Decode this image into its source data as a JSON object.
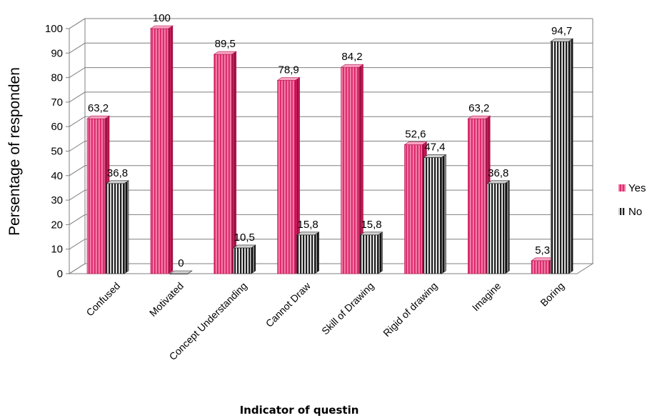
{
  "chart_data": {
    "type": "bar",
    "title": "",
    "xlabel": "Indicator of questin",
    "ylabel": "Persentage of responden",
    "ylim": [
      0,
      100
    ],
    "y_ticks": [
      0,
      10,
      20,
      30,
      40,
      50,
      60,
      70,
      80,
      90,
      100
    ],
    "grid": true,
    "legend_position": "right",
    "categories": [
      "Confused",
      "Motivated",
      "Concept Understanding",
      "Cannot Draw",
      "Skill of Drawing",
      "Rigid of drawing",
      "Imagine",
      "Boring"
    ],
    "series": [
      {
        "name": "Yes",
        "color": "#e8407a",
        "values": [
          63.2,
          100,
          89.5,
          78.9,
          84.2,
          52.6,
          63.2,
          5.3
        ],
        "labels": [
          "63,2",
          "100",
          "89,5",
          "78,9",
          "84,2",
          "52,6",
          "63,2",
          "5,3"
        ]
      },
      {
        "name": "No",
        "color": "#2a2a2a",
        "values": [
          36.8,
          0,
          10.5,
          15.8,
          15.8,
          47.4,
          36.8,
          94.7
        ],
        "labels": [
          "36,8",
          "0",
          "10,5",
          "15,8",
          "15,8",
          "47,4",
          "36,8",
          "94,7"
        ]
      }
    ]
  }
}
